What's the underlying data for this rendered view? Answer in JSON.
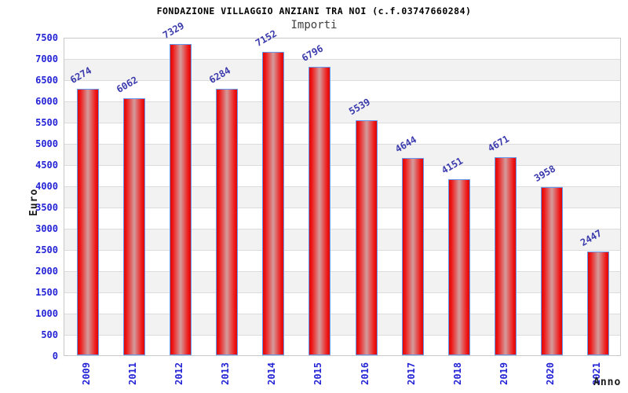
{
  "chart_data": {
    "type": "bar",
    "title": "FONDAZIONE VILLAGGIO ANZIANI TRA NOI (c.f.03747660284)",
    "subtitle": "Importi",
    "xlabel": "Anno",
    "ylabel": "Euro",
    "categories": [
      "2009",
      "2011",
      "2012",
      "2013",
      "2014",
      "2015",
      "2016",
      "2017",
      "2018",
      "2019",
      "2020",
      "2021"
    ],
    "values": [
      6274,
      6062,
      7329,
      6284,
      7152,
      6796,
      5539,
      4644,
      4151,
      4671,
      3958,
      2447
    ],
    "ylim": [
      0,
      7500
    ],
    "ytick_step": 500,
    "grid": true,
    "legend": "none",
    "band_shading": "alternating 500-unit horizontal bands",
    "colors": {
      "bar_edge_red": "#e00d0d",
      "bar_center_highlight": "#d49c9c",
      "bar_border_blue": "#6699ee",
      "value_label_blue": "#3a3aad",
      "axis_tick_blue": "#2424d6",
      "axis_title_black": "#1a1a1a",
      "subtitle_gray": "#404040",
      "band_gray": "#f2f2f2",
      "gridline_gray": "#dcdcdc",
      "plot_border_gray": "#c8c8c8"
    }
  }
}
